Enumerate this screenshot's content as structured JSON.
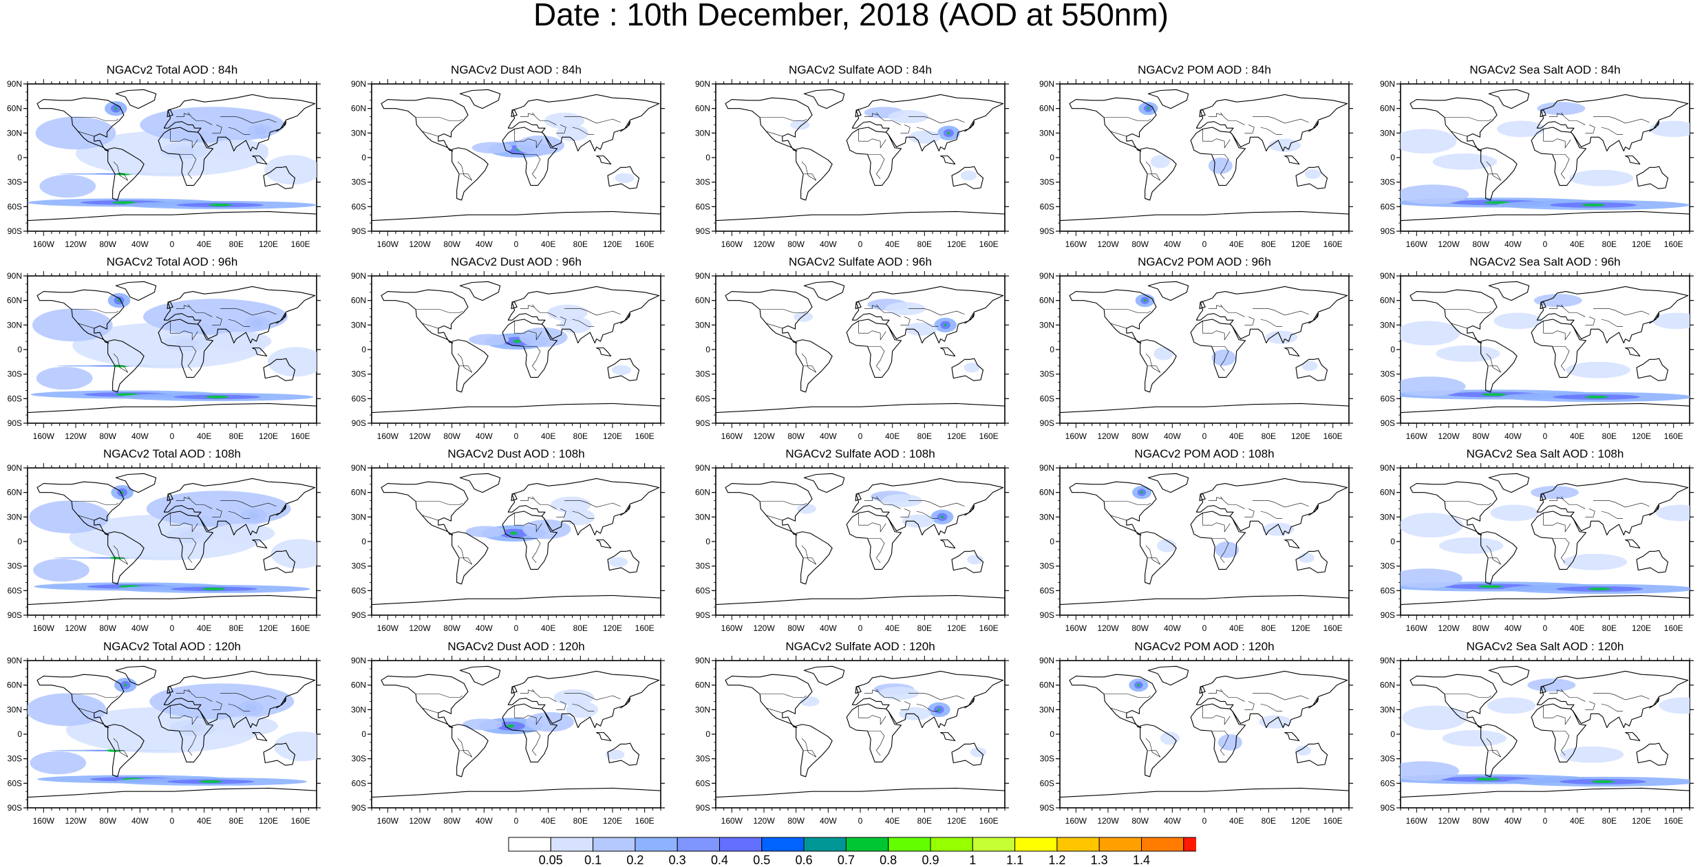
{
  "title": "Date : 10th December, 2018 (AOD at 550nm)",
  "panels": [
    [
      {
        "title": "NGACv2 Total AOD : 84h",
        "species": "total"
      },
      {
        "title": "NGACv2 Dust AOD : 84h",
        "species": "dust"
      },
      {
        "title": "NGACv2 Sulfate AOD : 84h",
        "species": "sulfate"
      },
      {
        "title": "NGACv2 POM AOD : 84h",
        "species": "pom"
      },
      {
        "title": "NGACv2 Sea Salt AOD : 84h",
        "species": "seasalt"
      }
    ],
    [
      {
        "title": "NGACv2 Total AOD : 96h",
        "species": "total"
      },
      {
        "title": "NGACv2 Dust AOD : 96h",
        "species": "dust"
      },
      {
        "title": "NGACv2 Sulfate AOD : 96h",
        "species": "sulfate"
      },
      {
        "title": "NGACv2 POM AOD : 96h",
        "species": "pom"
      },
      {
        "title": "NGACv2 Sea Salt AOD : 96h",
        "species": "seasalt"
      }
    ],
    [
      {
        "title": "NGACv2 Total AOD : 108h",
        "species": "total"
      },
      {
        "title": "NGACv2 Dust AOD : 108h",
        "species": "dust"
      },
      {
        "title": "NGACv2 Sulfate AOD : 108h",
        "species": "sulfate"
      },
      {
        "title": "NGACv2 POM AOD : 108h",
        "species": "pom"
      },
      {
        "title": "NGACv2 Sea Salt AOD : 108h",
        "species": "seasalt"
      }
    ],
    [
      {
        "title": "NGACv2 Total AOD : 120h",
        "species": "total"
      },
      {
        "title": "NGACv2 Dust AOD : 120h",
        "species": "dust"
      },
      {
        "title": "NGACv2 Sulfate AOD : 120h",
        "species": "sulfate"
      },
      {
        "title": "NGACv2 POM AOD : 120h",
        "species": "pom"
      },
      {
        "title": "NGACv2 Sea Salt  AOD : 120h",
        "species": "seasalt"
      }
    ]
  ],
  "lat_ticks": [
    "90N",
    "60N",
    "30N",
    "0",
    "30S",
    "60S",
    "90S"
  ],
  "lon_ticks": [
    "160W",
    "120W",
    "80W",
    "40W",
    "0",
    "40E",
    "80E",
    "120E",
    "160E"
  ],
  "lon_tick_values": [
    -160,
    -120,
    -80,
    -40,
    0,
    40,
    80,
    120,
    160
  ],
  "lat_tick_values": [
    90,
    60,
    30,
    0,
    -30,
    -60,
    -90
  ],
  "colorbar": {
    "labels": [
      "0.05",
      "0.1",
      "0.2",
      "0.3",
      "0.4",
      "0.5",
      "0.6",
      "0.7",
      "0.8",
      "0.9",
      "1",
      "1.1",
      "1.2",
      "1.3",
      "1.4"
    ],
    "colors": [
      "#ffffff",
      "#d6e2ff",
      "#b5c9ff",
      "#8eb2ff",
      "#7f96ff",
      "#6370ff",
      "#0063ff",
      "#009696",
      "#00c633",
      "#63ff00",
      "#96ff00",
      "#c6ff33",
      "#ffff00",
      "#ffc600",
      "#ffa000",
      "#ff7c00",
      "#ff1900"
    ]
  }
}
